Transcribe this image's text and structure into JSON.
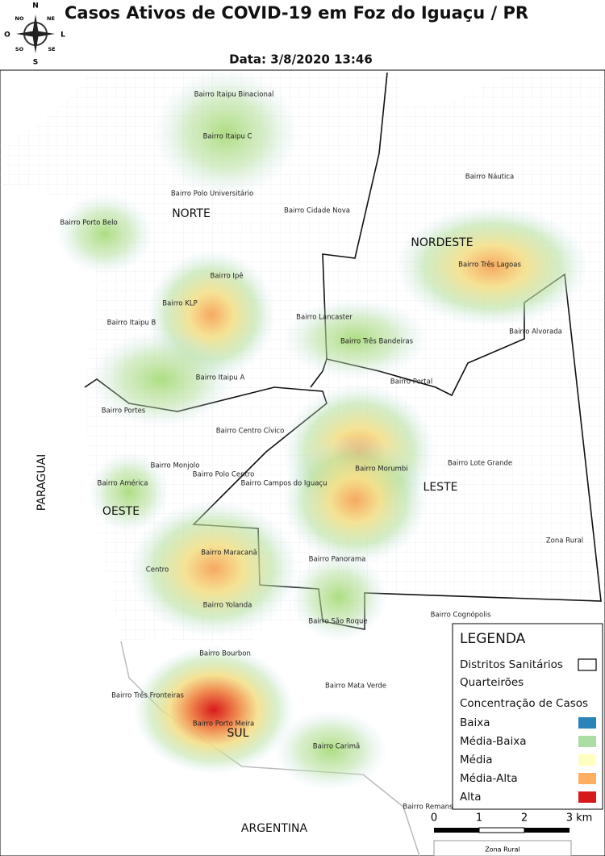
{
  "header": {
    "title": "Casos Ativos de COVID-19 em Foz do Iguaçu / PR",
    "date": "Data: 3/8/2020 13:46"
  },
  "compass": [
    "N",
    "NE",
    "L",
    "SE",
    "S",
    "SO",
    "O",
    "NO"
  ],
  "districts": [
    "NORTE",
    "NORDESTE",
    "LESTE",
    "OESTE",
    "SUL"
  ],
  "countries": [
    "PARAGUAI",
    "ARGENTINA"
  ],
  "neighborhoods": [
    "Bairro Itaipu Binacional",
    "Bairro Itaipu C",
    "Bairro Polo Universitário",
    "Bairro Porto Belo",
    "Bairro Cidade Nova",
    "Bairro Náutica",
    "Bairro Três Lagoas",
    "Bairro Ipê",
    "Bairro KLP",
    "Bairro Lancaster",
    "Bairro Itaipu B",
    "Bairro Alvorada",
    "Bairro Três Bandeiras",
    "Bairro Itaipu A",
    "Bairro Portal",
    "Bairro Portes",
    "Bairro Centro Cívico",
    "Bairro Monjolo",
    "Bairro Polo Centro",
    "Bairro Lote Grande",
    "Bairro Morumbi",
    "Bairro América",
    "Bairro Campos do Iguaçu",
    "Zona Rural",
    "Bairro Maracanã",
    "Bairro Panorama",
    "Centro",
    "Bairro Yolanda",
    "Bairro Cognópolis",
    "Bairro São Roque",
    "Bairro Bourbon",
    "Bairro Mata Verde",
    "Bairro Três Fronteiras",
    "Bairro Porto Meira",
    "Bairro Carimã",
    "Bairro Remanso"
  ],
  "legend": {
    "title": "LEGENDA",
    "layers": [
      "Distritos Sanitários",
      "Quarteirões"
    ],
    "heat_title": "Concentração de Casos",
    "levels": [
      {
        "label": "Baixa",
        "color": "#2b83ba"
      },
      {
        "label": "Média-Baixa",
        "color": "#abdda4"
      },
      {
        "label": "Média",
        "color": "#ffffbf"
      },
      {
        "label": "Média-Alta",
        "color": "#fdae61"
      },
      {
        "label": "Alta",
        "color": "#d7191c"
      }
    ]
  },
  "scale": {
    "ticks": [
      "0",
      "1",
      "2",
      "3 km"
    ],
    "caption": "Zona Rural"
  }
}
